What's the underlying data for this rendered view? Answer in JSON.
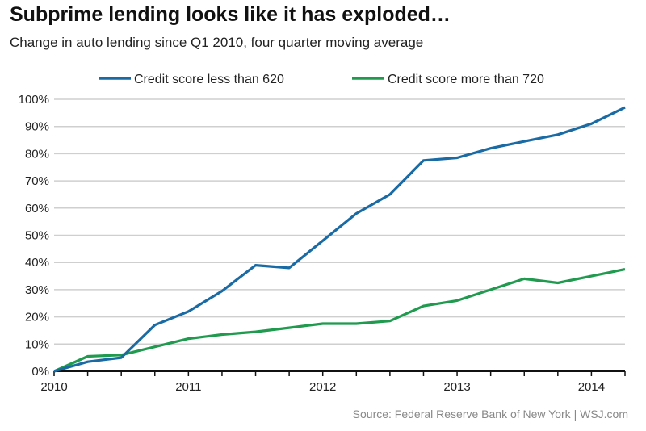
{
  "chart_data": {
    "type": "line",
    "title": "Subprime lending looks like it has exploded…",
    "subtitle": "Change in auto lending since Q1 2010, four quarter moving average",
    "source": "Source: Federal Reserve Bank of New York  |  WSJ.com",
    "x": [
      "2010 Q1",
      "2010 Q2",
      "2010 Q3",
      "2010 Q4",
      "2011 Q1",
      "2011 Q2",
      "2011 Q3",
      "2011 Q4",
      "2012 Q1",
      "2012 Q2",
      "2012 Q3",
      "2012 Q4",
      "2013 Q1",
      "2013 Q2",
      "2013 Q3",
      "2013 Q4",
      "2014 Q1",
      "2014 Q2"
    ],
    "x_tick_labels": [
      "2010",
      "2011",
      "2012",
      "2013",
      "2014"
    ],
    "y_tick_labels": [
      "0%",
      "10%",
      "20%",
      "30%",
      "40%",
      "50%",
      "60%",
      "70%",
      "80%",
      "90%",
      "100%"
    ],
    "ylim": [
      0,
      100
    ],
    "grid": true,
    "legend_placement": "top",
    "series": [
      {
        "name": "Credit score less than 620",
        "color": "#1a6aa3",
        "values": [
          0,
          3.5,
          5,
          17,
          22,
          29.5,
          39,
          38,
          48,
          58,
          65,
          77.5,
          78.5,
          82,
          84.5,
          87,
          91,
          97
        ]
      },
      {
        "name": "Credit score more than 720",
        "color": "#1f9a4e",
        "values": [
          0,
          5.5,
          6,
          9,
          12,
          13.5,
          14.5,
          16,
          17.5,
          17.5,
          18.5,
          24,
          26,
          30,
          34,
          32.5,
          35,
          37.5
        ]
      }
    ]
  }
}
